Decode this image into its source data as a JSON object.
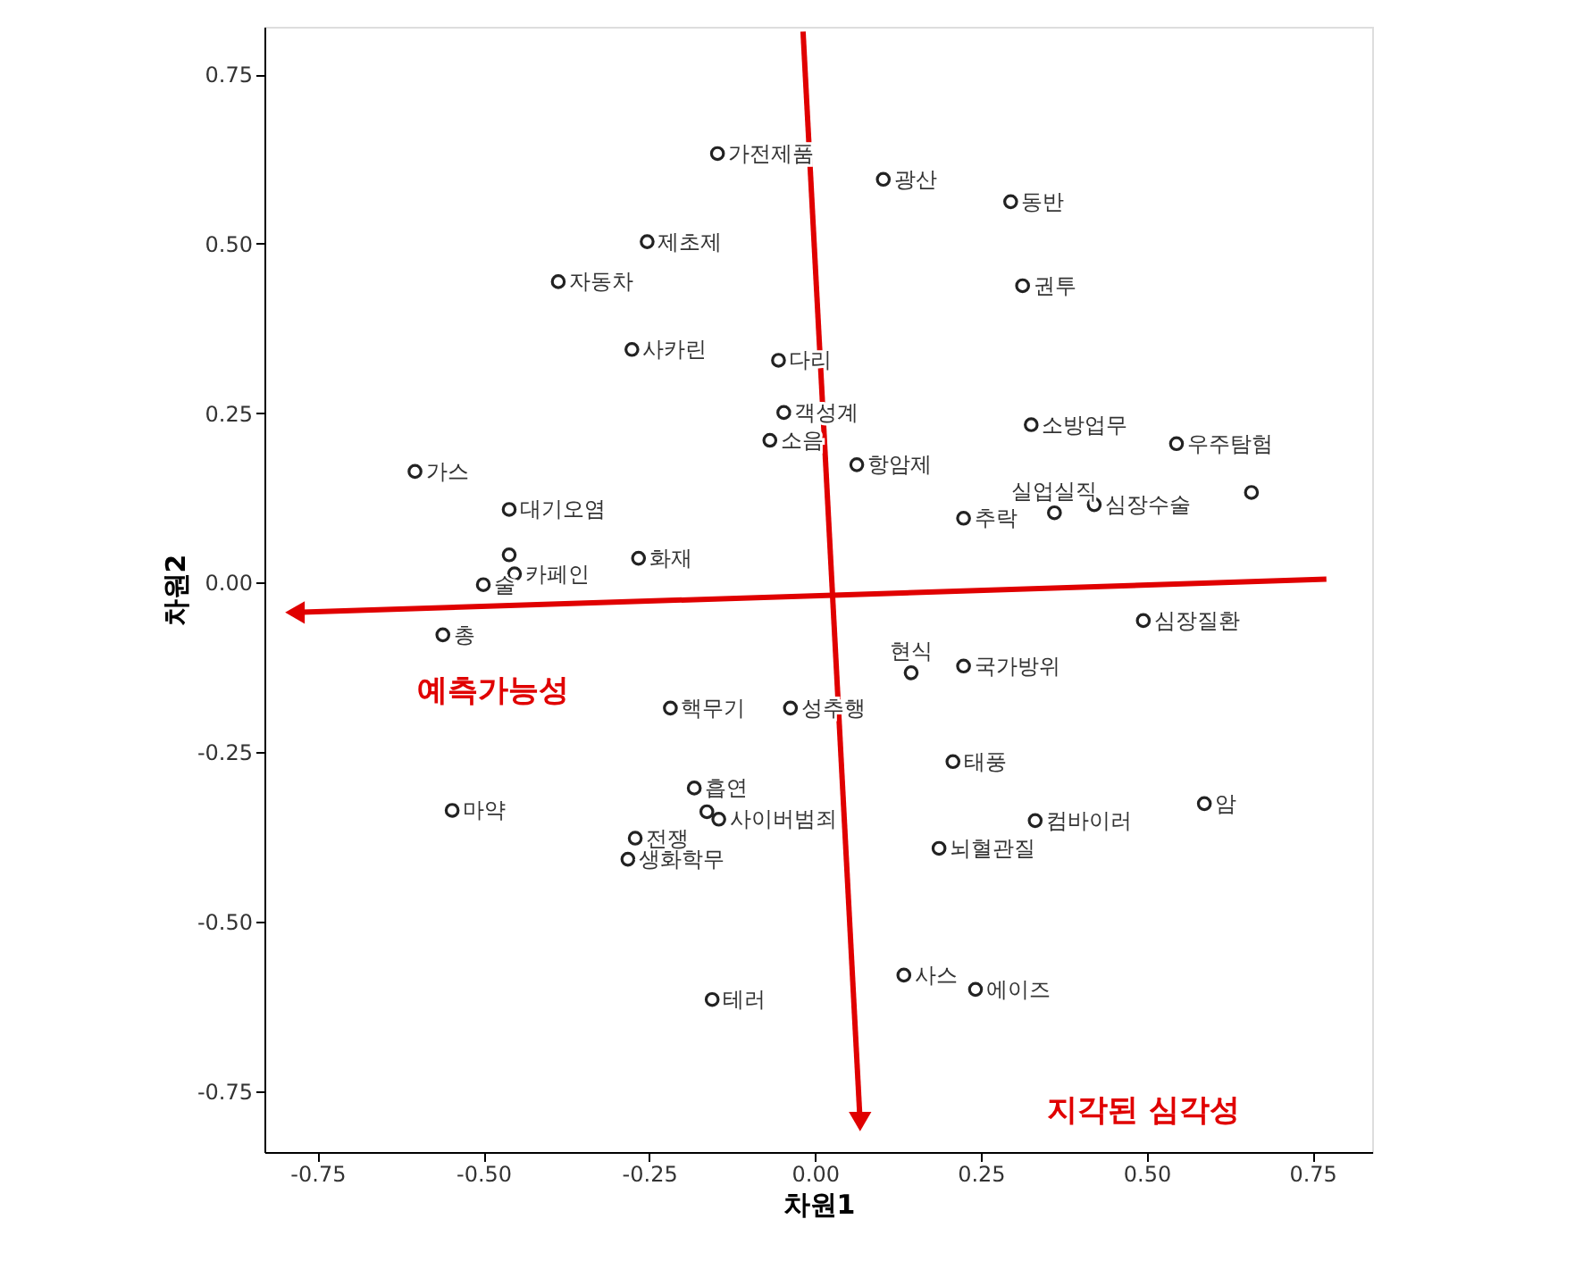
{
  "chart_data": {
    "type": "scatter",
    "xlabel": "차원1",
    "ylabel": "차원2",
    "x": [
      -0.147,
      0.103,
      0.295,
      -0.253,
      -0.387,
      0.313,
      -0.276,
      -0.055,
      -0.047,
      -0.068,
      0.063,
      0.326,
      0.545,
      0.361,
      0.224,
      0.421,
      0.658,
      -0.603,
      -0.461,
      -0.266,
      -0.461,
      -0.5,
      -0.453,
      -0.561,
      0.495,
      0.145,
      0.224,
      -0.218,
      -0.037,
      0.208,
      -0.182,
      -0.547,
      -0.271,
      -0.282,
      -0.145,
      -0.163,
      0.187,
      0.332,
      0.587,
      0.134,
      0.242,
      -0.155
    ],
    "values": [
      0.633,
      0.595,
      0.562,
      0.503,
      0.444,
      0.438,
      0.344,
      0.328,
      0.251,
      0.21,
      0.174,
      0.233,
      0.205,
      0.103,
      0.095,
      0.115,
      0.133,
      0.164,
      0.108,
      0.036,
      0.041,
      -0.003,
      0.013,
      -0.077,
      -0.056,
      -0.133,
      -0.123,
      -0.185,
      -0.185,
      -0.264,
      -0.303,
      -0.336,
      -0.377,
      -0.408,
      -0.349,
      -0.338,
      -0.392,
      -0.351,
      -0.326,
      -0.579,
      -0.6,
      -0.615
    ],
    "value_labels": [
      "가전제품",
      "광산",
      "동반",
      "제초제",
      "자동차",
      "권투",
      "사카린",
      "다리",
      "객성계",
      "소음",
      "항암제",
      "소방업무",
      "우주탐험",
      "실업실직",
      "추락",
      "심장수술",
      null,
      "가스",
      "대기오염",
      "화재",
      null,
      "술",
      "카페인",
      "총",
      "심장질환",
      "현식",
      "국가방위",
      "핵무기",
      "성추행",
      "태풍",
      "흡연",
      "마약",
      "전쟁",
      "생화학무",
      "사이버범죄",
      null,
      "뇌혈관질",
      "컴바이러",
      "암",
      "사스",
      "에이즈",
      "테러"
    ],
    "color": "#222222",
    "marker": "circle",
    "grid": false,
    "xlim": [
      -0.83,
      0.84
    ],
    "ylim": [
      -0.84,
      0.82
    ],
    "xticks": [
      {
        "value": -0.75,
        "label": "-0.75"
      },
      {
        "value": -0.5,
        "label": "-0.50"
      },
      {
        "value": -0.25,
        "label": "-0.25"
      },
      {
        "value": 0,
        "label": "0.00"
      },
      {
        "value": 0.25,
        "label": "0.25"
      },
      {
        "value": 0.5,
        "label": "0.50"
      },
      {
        "value": 0.75,
        "label": "0.75"
      }
    ],
    "yticks": [
      {
        "value": -0.75,
        "label": "-0.75"
      },
      {
        "value": -0.5,
        "label": "-0.50"
      },
      {
        "value": -0.25,
        "label": "-0.25"
      },
      {
        "value": 0,
        "label": "0.00"
      },
      {
        "value": 0.25,
        "label": "0.25"
      },
      {
        "value": 0.5,
        "label": "0.50"
      },
      {
        "value": 0.75,
        "label": "0.75"
      }
    ],
    "annotations": [
      "예측가능성",
      "지각된 심각성"
    ]
  }
}
